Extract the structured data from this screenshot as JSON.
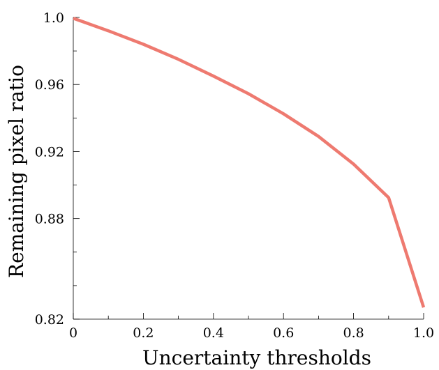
{
  "chart_data": {
    "type": "line",
    "title": "",
    "xlabel": "Uncertainty thresholds",
    "ylabel": "Remaining pixel ratio",
    "xlim": [
      0,
      1.0
    ],
    "ylim": [
      0.82,
      1.0
    ],
    "x_ticks": [
      0,
      0.2,
      0.4,
      0.6,
      0.8,
      1.0
    ],
    "x_tick_labels": [
      "0",
      "0.2",
      "0.4",
      "0.6",
      "0.8",
      "1.0"
    ],
    "x_minor_ticks": [
      0.1,
      0.3,
      0.5,
      0.7,
      0.9
    ],
    "y_ticks": [
      0.82,
      0.88,
      0.92,
      0.96,
      1.0
    ],
    "y_tick_labels": [
      "0.82",
      "0.88",
      "0.92",
      "0.96",
      "1.0"
    ],
    "y_minor_ticks": [
      0.84,
      0.86,
      0.9,
      0.94,
      0.98
    ],
    "grid": false,
    "legend": "none",
    "series": [
      {
        "color": "#ee7a70",
        "x": [
          0,
          0.1,
          0.2,
          0.3,
          0.4,
          0.5,
          0.6,
          0.7,
          0.8,
          0.9,
          1.0
        ],
        "y": [
          0.9995,
          0.992,
          0.984,
          0.975,
          0.965,
          0.9545,
          0.9425,
          0.929,
          0.9125,
          0.8925,
          0.827
        ]
      }
    ]
  }
}
